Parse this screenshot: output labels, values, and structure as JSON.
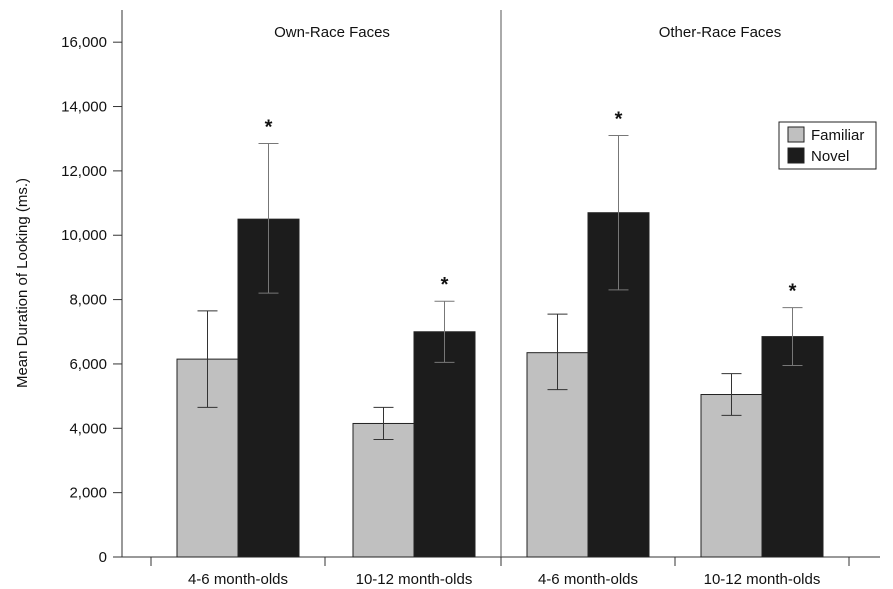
{
  "chart_data": {
    "type": "bar",
    "ylabel": "Mean Duration of Looking (ms.)",
    "ylim": [
      0,
      17000
    ],
    "yticks": [
      0,
      2000,
      4000,
      6000,
      8000,
      10000,
      12000,
      14000,
      16000
    ],
    "ytick_labels": [
      "0",
      "2,000",
      "4,000",
      "6,000",
      "8,000",
      "10,000",
      "12,000",
      "14,000",
      "16,000"
    ],
    "panels": [
      {
        "title": "Own-Race Faces",
        "categories": [
          "4-6 month-olds",
          "10-12 month-olds"
        ]
      },
      {
        "title": "Other-Race Faces",
        "categories": [
          "4-6 month-olds",
          "10-12 month-olds"
        ]
      }
    ],
    "series": [
      {
        "name": "Familiar",
        "color": "#c0c0c0",
        "values": [
          6150,
          4150,
          6350,
          5050
        ],
        "err_low": [
          4650,
          3650,
          5200,
          4400
        ],
        "err_high": [
          7650,
          4650,
          7550,
          5700
        ]
      },
      {
        "name": "Novel",
        "color": "#1c1c1c",
        "values": [
          10500,
          7000,
          10700,
          6850
        ],
        "err_low": [
          8200,
          6050,
          8300,
          5950
        ],
        "err_high": [
          12850,
          7950,
          13100,
          7750
        ]
      }
    ],
    "significance_marker": "*",
    "significant": [
      false,
      false,
      false,
      false,
      true,
      true,
      true,
      true
    ],
    "legend_position": "top-right",
    "grid": false
  }
}
